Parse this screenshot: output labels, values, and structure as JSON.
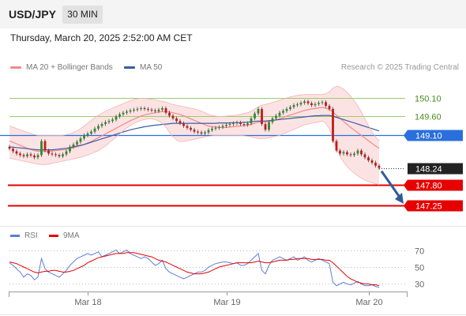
{
  "header": {
    "symbol": "USD/JPY",
    "timeframe": "30 MIN"
  },
  "timestamp": "Thursday, March 20, 2025 2:52:00 AM CET",
  "legend": {
    "ma20_label": "MA 20 + Bollinger Bands",
    "ma50_label": "MA 50",
    "research": "Research © 2025 Trading Central"
  },
  "rsi_legend": {
    "rsi_label": "RSI",
    "ma_label": "9MA"
  },
  "colors": {
    "ma20": "#f08a8a",
    "ma50": "#3b5ba5",
    "bands_fill": "#fbd9d9",
    "resistance": "#9ccb6a",
    "pivot": "#2a6fdb",
    "support": "#e60000",
    "current": "#222222",
    "candle_up": "#2d8a2d",
    "candle_down": "#c21a1a",
    "rsi": "#5b7fd6",
    "rsi_ma": "#e60000",
    "arrow": "#2f5b9a"
  },
  "chart_data": [
    {
      "type": "candlestick",
      "title": "USD/JPY 30 MIN",
      "x_ticks": [
        "Mar 18",
        "Mar 19",
        "Mar 20"
      ],
      "ylim": [
        147.0,
        150.55
      ],
      "levels": [
        {
          "label": "150.10",
          "value": 150.1,
          "kind": "resistance"
        },
        {
          "label": "149.60",
          "value": 149.6,
          "kind": "resistance"
        },
        {
          "label": "149.10",
          "value": 149.1,
          "kind": "pivot"
        },
        {
          "label": "148.24",
          "value": 148.24,
          "kind": "current"
        },
        {
          "label": "147.80",
          "value": 147.8,
          "kind": "support"
        },
        {
          "label": "147.25",
          "value": 147.25,
          "kind": "support"
        }
      ],
      "close": [
        148.75,
        148.68,
        148.62,
        148.58,
        148.55,
        148.6,
        148.57,
        148.52,
        148.58,
        148.95,
        148.7,
        148.62,
        148.6,
        148.58,
        148.55,
        148.6,
        148.68,
        148.8,
        148.86,
        148.93,
        149.02,
        149.1,
        149.15,
        149.2,
        149.28,
        149.35,
        149.4,
        149.45,
        149.48,
        149.52,
        149.6,
        149.66,
        149.7,
        149.73,
        149.76,
        149.78,
        149.8,
        149.82,
        149.8,
        149.78,
        149.76,
        149.74,
        149.78,
        149.82,
        149.7,
        149.62,
        149.55,
        149.48,
        149.42,
        149.35,
        149.3,
        149.25,
        149.2,
        149.18,
        149.15,
        149.18,
        149.24,
        149.28,
        149.3,
        149.32,
        149.35,
        149.38,
        149.4,
        149.42,
        149.44,
        149.4,
        149.38,
        149.42,
        149.55,
        149.68,
        149.8,
        149.4,
        149.25,
        149.45,
        149.55,
        149.62,
        149.7,
        149.75,
        149.8,
        149.85,
        149.9,
        149.92,
        149.96,
        150.0,
        149.95,
        149.9,
        149.93,
        149.96,
        149.98,
        149.88,
        149.8,
        148.95,
        148.7,
        148.62,
        148.66,
        148.6,
        148.58,
        148.62,
        148.7,
        148.6,
        148.52,
        148.44,
        148.38,
        148.3,
        148.24
      ],
      "series": [
        {
          "name": "MA 20",
          "values": [
            148.95,
            148.92,
            148.88,
            148.84,
            148.8,
            148.76,
            148.73,
            148.7,
            148.68,
            148.68,
            148.68,
            148.68,
            148.69,
            148.7,
            148.71,
            148.72,
            148.73,
            148.75,
            148.78,
            148.8,
            148.83,
            148.86,
            148.9,
            148.94,
            148.99,
            149.04,
            149.09,
            149.14,
            149.19,
            149.24,
            149.29,
            149.34,
            149.39,
            149.44,
            149.49,
            149.53,
            149.57,
            149.61,
            149.64,
            149.66,
            149.68,
            149.7,
            149.72,
            149.73,
            149.73,
            149.72,
            149.7,
            149.68,
            149.65,
            149.62,
            149.58,
            149.54,
            149.5,
            149.46,
            149.42,
            149.38,
            149.35,
            149.33,
            149.32,
            149.31,
            149.31,
            149.31,
            149.32,
            149.33,
            149.34,
            149.35,
            149.36,
            149.37,
            149.39,
            149.42,
            149.45,
            149.46,
            149.46,
            149.47,
            149.49,
            149.51,
            149.54,
            149.57,
            149.61,
            149.64,
            149.67,
            149.7,
            149.73,
            149.76,
            149.78,
            149.8,
            149.81,
            149.83,
            149.84,
            149.82,
            149.79,
            149.72,
            149.63,
            149.55,
            149.47,
            149.39,
            149.31,
            149.24,
            149.17,
            149.1,
            149.03,
            148.96,
            148.89,
            148.82,
            148.76
          ]
        },
        {
          "name": "MA 50",
          "values": [
            148.8,
            148.79,
            148.78,
            148.77,
            148.76,
            148.75,
            148.74,
            148.73,
            148.72,
            148.72,
            148.72,
            148.72,
            148.72,
            148.73,
            148.74,
            148.75,
            148.76,
            148.78,
            148.8,
            148.82,
            148.84,
            148.86,
            148.89,
            148.92,
            148.95,
            148.98,
            149.01,
            149.04,
            149.07,
            149.1,
            149.13,
            149.16,
            149.19,
            149.22,
            149.25,
            149.27,
            149.29,
            149.31,
            149.33,
            149.34,
            149.36,
            149.37,
            149.38,
            149.39,
            149.4,
            149.41,
            149.42,
            149.42,
            149.42,
            149.42,
            149.42,
            149.42,
            149.42,
            149.42,
            149.42,
            149.42,
            149.42,
            149.42,
            149.42,
            149.43,
            149.43,
            149.43,
            149.43,
            149.44,
            149.44,
            149.44,
            149.45,
            149.45,
            149.46,
            149.47,
            149.48,
            149.48,
            149.48,
            149.49,
            149.5,
            149.51,
            149.52,
            149.53,
            149.54,
            149.55,
            149.56,
            149.57,
            149.58,
            149.59,
            149.6,
            149.61,
            149.62,
            149.62,
            149.63,
            149.63,
            149.63,
            149.61,
            149.58,
            149.55,
            149.52,
            149.49,
            149.46,
            149.43,
            149.4,
            149.37,
            149.34,
            149.31,
            149.28,
            149.25,
            149.22
          ]
        },
        {
          "name": "Bollinger Upper",
          "values": [
            149.35,
            149.32,
            149.28,
            149.25,
            149.22,
            149.18,
            149.15,
            149.12,
            149.1,
            149.1,
            149.1,
            149.1,
            149.1,
            149.1,
            149.1,
            149.1,
            149.12,
            149.14,
            149.18,
            149.22,
            149.28,
            149.35,
            149.42,
            149.5,
            149.57,
            149.63,
            149.69,
            149.74,
            149.78,
            149.82,
            149.86,
            149.9,
            149.94,
            149.98,
            150.02,
            150.05,
            150.07,
            150.08,
            150.08,
            150.07,
            150.06,
            150.04,
            150.02,
            150.0,
            149.98,
            149.95,
            149.92,
            149.9,
            149.88,
            149.86,
            149.84,
            149.82,
            149.8,
            149.78,
            149.74,
            149.7,
            149.66,
            149.63,
            149.61,
            149.6,
            149.6,
            149.61,
            149.62,
            149.63,
            149.64,
            149.66,
            149.68,
            149.7,
            149.74,
            149.8,
            149.86,
            149.9,
            149.92,
            149.94,
            149.97,
            150.0,
            150.03,
            150.06,
            150.09,
            150.12,
            150.14,
            150.16,
            150.17,
            150.18,
            150.18,
            150.18,
            150.18,
            150.18,
            150.18,
            150.2,
            150.25,
            150.35,
            150.4,
            150.38,
            150.32,
            150.24,
            150.14,
            150.02,
            149.88,
            149.72,
            149.54,
            149.36,
            149.2,
            149.06,
            148.95
          ]
        },
        {
          "name": "Bollinger Lower",
          "values": [
            148.5,
            148.48,
            148.46,
            148.44,
            148.42,
            148.4,
            148.38,
            148.36,
            148.34,
            148.33,
            148.33,
            148.34,
            148.36,
            148.38,
            148.4,
            148.42,
            148.44,
            148.46,
            148.48,
            148.5,
            148.52,
            148.55,
            148.58,
            148.62,
            148.66,
            148.7,
            148.76,
            148.82,
            148.9,
            148.98,
            149.06,
            149.14,
            149.22,
            149.3,
            149.36,
            149.42,
            149.46,
            149.5,
            149.52,
            149.54,
            149.54,
            149.52,
            149.48,
            149.42,
            149.32,
            149.18,
            149.06,
            148.98,
            148.94,
            148.94,
            148.96,
            148.98,
            149.0,
            149.02,
            149.04,
            149.06,
            149.08,
            149.09,
            149.1,
            149.1,
            149.1,
            149.1,
            149.1,
            149.1,
            149.1,
            149.1,
            149.09,
            149.08,
            149.06,
            149.04,
            149.02,
            149.02,
            149.02,
            149.04,
            149.06,
            149.08,
            149.1,
            149.14,
            149.18,
            149.22,
            149.26,
            149.3,
            149.34,
            149.38,
            149.4,
            149.42,
            149.44,
            149.46,
            149.48,
            149.42,
            149.28,
            149.0,
            148.75,
            148.55,
            148.4,
            148.28,
            148.18,
            148.1,
            148.03,
            147.97,
            147.92,
            147.88,
            147.85,
            147.82,
            147.8
          ]
        }
      ],
      "projection": {
        "from": 148.24,
        "to": 147.25
      }
    },
    {
      "type": "line",
      "title": "RSI",
      "ylim": [
        22,
        78
      ],
      "y_ticks": [
        70,
        50,
        30
      ],
      "series": [
        {
          "name": "RSI",
          "values": [
            55,
            52,
            48,
            44,
            38,
            42,
            40,
            35,
            38,
            60,
            48,
            44,
            42,
            40,
            38,
            42,
            46,
            52,
            56,
            60,
            62,
            64,
            66,
            64,
            66,
            68,
            62,
            64,
            66,
            68,
            70,
            66,
            68,
            70,
            66,
            64,
            62,
            60,
            62,
            60,
            56,
            52,
            54,
            58,
            48,
            44,
            42,
            40,
            38,
            36,
            38,
            40,
            42,
            44,
            44,
            46,
            50,
            52,
            54,
            55,
            56,
            56,
            55,
            54,
            55,
            52,
            52,
            54,
            58,
            62,
            66,
            46,
            42,
            52,
            58,
            60,
            62,
            60,
            58,
            60,
            62,
            58,
            60,
            62,
            58,
            56,
            58,
            60,
            58,
            56,
            54,
            32,
            28,
            30,
            32,
            30,
            29,
            31,
            33,
            30,
            28,
            28,
            29,
            27,
            26
          ]
        },
        {
          "name": "9MA",
          "values": [
            56,
            55,
            54,
            52,
            50,
            48,
            46,
            44,
            43,
            44,
            45,
            45,
            46,
            46,
            45,
            44,
            44,
            45,
            46,
            48,
            50,
            52,
            55,
            57,
            59,
            61,
            62,
            63,
            64,
            65,
            66,
            66,
            66,
            67,
            67,
            67,
            66,
            65,
            64,
            63,
            62,
            60,
            58,
            57,
            56,
            54,
            52,
            50,
            48,
            46,
            44,
            43,
            42,
            42,
            42,
            43,
            44,
            46,
            48,
            50,
            51,
            52,
            53,
            54,
            55,
            55,
            55,
            55,
            55,
            56,
            57,
            56,
            55,
            55,
            56,
            57,
            58,
            58,
            58,
            59,
            59,
            60,
            60,
            60,
            60,
            59,
            59,
            59,
            59,
            58,
            58,
            55,
            51,
            47,
            43,
            39,
            36,
            34,
            32,
            31,
            30,
            30,
            29,
            29,
            28
          ]
        }
      ]
    }
  ]
}
